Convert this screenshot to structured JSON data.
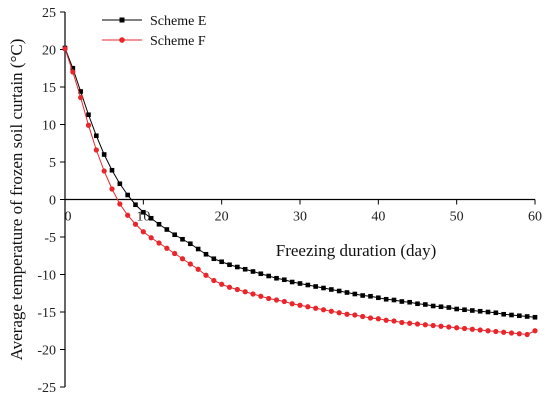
{
  "chart_data": {
    "type": "line",
    "xlabel": "Freezing duration (day)",
    "ylabel": "Average temperature of frozen soil curtain (°C)",
    "xlim": [
      0,
      60
    ],
    "ylim": [
      -25,
      25
    ],
    "xticks": [
      0,
      10,
      20,
      30,
      40,
      50,
      60
    ],
    "yticks": [
      25,
      20,
      15,
      10,
      5,
      0,
      -5,
      -10,
      -15,
      -20,
      -25
    ],
    "grid": false,
    "legend_position": "top-left",
    "series": [
      {
        "name": "Scheme E",
        "color": "#000000",
        "marker": "square",
        "x": [
          0,
          1,
          2,
          3,
          4,
          5,
          6,
          7,
          8,
          9,
          10,
          11,
          12,
          13,
          14,
          15,
          16,
          17,
          18,
          19,
          20,
          21,
          22,
          23,
          24,
          25,
          26,
          27,
          28,
          29,
          30,
          31,
          32,
          33,
          34,
          35,
          36,
          37,
          38,
          39,
          40,
          41,
          42,
          43,
          44,
          45,
          46,
          47,
          48,
          49,
          50,
          51,
          52,
          53,
          54,
          55,
          56,
          57,
          58,
          59,
          60
        ],
        "values": [
          20.2,
          17.5,
          14.4,
          11.3,
          8.5,
          6.0,
          3.9,
          2.1,
          0.6,
          -0.7,
          -1.7,
          -2.5,
          -3.3,
          -4.0,
          -4.7,
          -5.3,
          -5.9,
          -6.6,
          -7.3,
          -7.9,
          -8.3,
          -8.7,
          -9.0,
          -9.3,
          -9.6,
          -9.9,
          -10.2,
          -10.5,
          -10.7,
          -11.0,
          -11.2,
          -11.4,
          -11.6,
          -11.8,
          -12.0,
          -12.2,
          -12.4,
          -12.6,
          -12.8,
          -12.9,
          -13.1,
          -13.3,
          -13.4,
          -13.6,
          -13.7,
          -13.9,
          -14.0,
          -14.2,
          -14.3,
          -14.4,
          -14.6,
          -14.7,
          -14.8,
          -14.9,
          -15.0,
          -15.1,
          -15.3,
          -15.4,
          -15.5,
          -15.6,
          -15.7
        ]
      },
      {
        "name": "Scheme F",
        "color": "#e8262b",
        "marker": "circle",
        "x": [
          0,
          1,
          2,
          3,
          4,
          5,
          6,
          7,
          8,
          9,
          10,
          11,
          12,
          13,
          14,
          15,
          16,
          17,
          18,
          19,
          20,
          21,
          22,
          23,
          24,
          25,
          26,
          27,
          28,
          29,
          30,
          31,
          32,
          33,
          34,
          35,
          36,
          37,
          38,
          39,
          40,
          41,
          42,
          43,
          44,
          45,
          46,
          47,
          48,
          49,
          50,
          51,
          52,
          53,
          54,
          55,
          56,
          57,
          58,
          59,
          60
        ],
        "values": [
          20.1,
          17.0,
          13.6,
          9.9,
          6.6,
          3.8,
          1.4,
          -0.6,
          -2.1,
          -3.3,
          -4.3,
          -5.1,
          -5.8,
          -6.5,
          -7.2,
          -7.9,
          -8.6,
          -9.3,
          -10.1,
          -10.8,
          -11.3,
          -11.7,
          -12.0,
          -12.3,
          -12.6,
          -12.9,
          -13.2,
          -13.4,
          -13.6,
          -13.9,
          -14.1,
          -14.3,
          -14.5,
          -14.7,
          -14.9,
          -15.1,
          -15.3,
          -15.4,
          -15.6,
          -15.8,
          -15.9,
          -16.1,
          -16.2,
          -16.4,
          -16.5,
          -16.6,
          -16.7,
          -16.8,
          -16.9,
          -17.0,
          -17.1,
          -17.2,
          -17.3,
          -17.4,
          -17.5,
          -17.6,
          -17.7,
          -17.8,
          -17.9,
          -18.0,
          -17.5
        ]
      }
    ]
  }
}
